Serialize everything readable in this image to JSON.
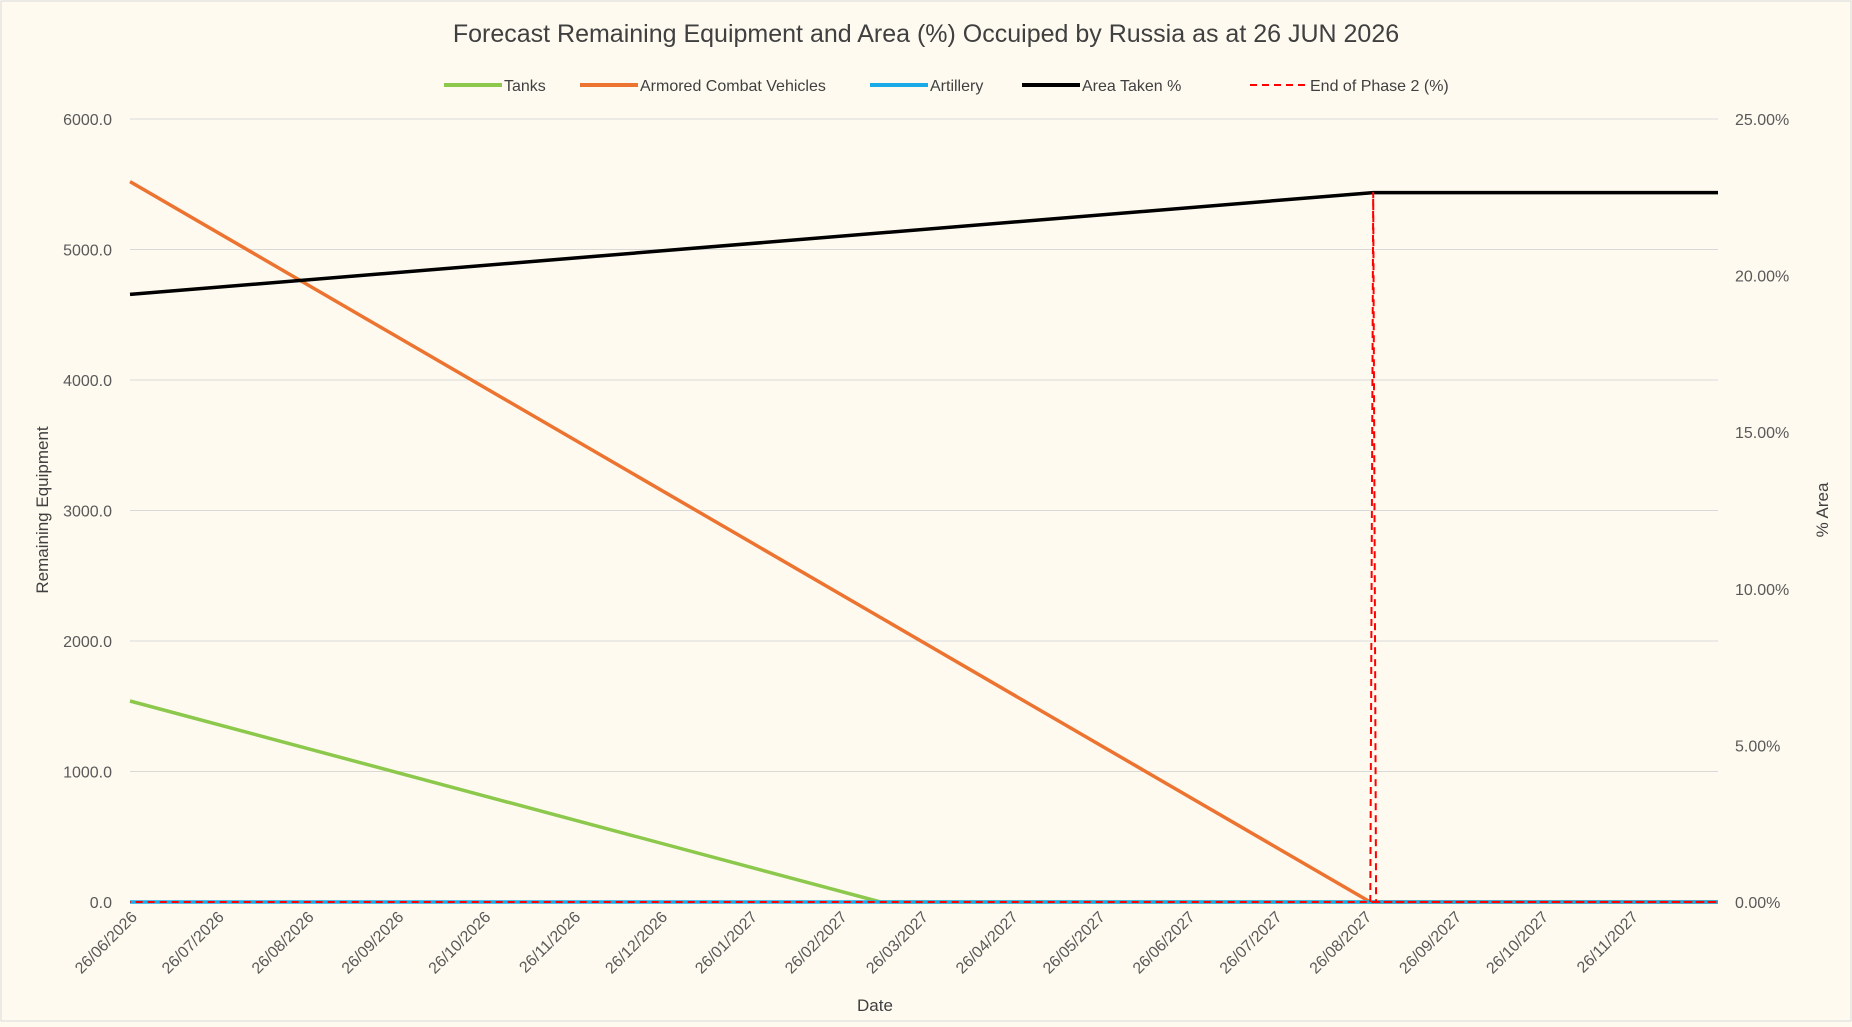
{
  "chart_data": {
    "type": "line",
    "title": "Forecast Remaining Equipment and Area (%) Occuiped by Russia as at 26 JUN 2026",
    "xlabel": "Date",
    "ylabel": "Remaining Equipment",
    "y2label": "% Area",
    "ylim": [
      0,
      6000
    ],
    "y2lim": [
      0,
      25
    ],
    "xlim": [
      "26/06/2026",
      "26/12/2027"
    ],
    "x_ticks": [
      "26/06/2026",
      "26/07/2026",
      "26/08/2026",
      "26/09/2026",
      "26/10/2026",
      "26/11/2026",
      "26/12/2026",
      "26/01/2027",
      "26/02/2027",
      "26/03/2027",
      "26/04/2027",
      "26/05/2027",
      "26/06/2027",
      "26/07/2027",
      "26/08/2027",
      "26/09/2027",
      "26/10/2027",
      "26/11/2027"
    ],
    "y_ticks": [
      "0.0",
      "1000.0",
      "2000.0",
      "3000.0",
      "4000.0",
      "5000.0",
      "6000.0"
    ],
    "y2_ticks": [
      "0.00%",
      "5.00%",
      "10.00%",
      "15.00%",
      "20.00%",
      "25.00%"
    ],
    "grid": true,
    "legend_position": "top",
    "series": [
      {
        "name": "Tanks",
        "axis": "left",
        "color": "#8cc84b",
        "dash": false,
        "points": [
          [
            "26/06/2026",
            1540
          ],
          [
            "12/03/2027",
            0
          ],
          [
            "26/12/2027",
            0
          ]
        ]
      },
      {
        "name": "Armored Combat Vehicles",
        "axis": "left",
        "color": "#ed7330",
        "dash": false,
        "points": [
          [
            "26/06/2026",
            5520
          ],
          [
            "28/08/2027",
            0
          ],
          [
            "26/12/2027",
            0
          ]
        ]
      },
      {
        "name": "Artillery",
        "axis": "left",
        "color": "#1aaae8",
        "dash": false,
        "points": [
          [
            "26/06/2026",
            0
          ],
          [
            "26/12/2027",
            0
          ]
        ]
      },
      {
        "name": "Area Taken %",
        "axis": "right",
        "color": "#000000",
        "dash": false,
        "points": [
          [
            "26/06/2026",
            19.4
          ],
          [
            "29/08/2027",
            22.65
          ],
          [
            "26/12/2027",
            22.65
          ]
        ]
      },
      {
        "name": "End of Phase 2 (%)",
        "axis": "right",
        "color": "#ff0000",
        "dash": true,
        "points": [
          [
            "28/08/2027",
            0
          ],
          [
            "29/08/2027",
            22.65
          ],
          [
            "30/08/2027",
            0
          ],
          [
            "26/12/2027",
            0
          ],
          [
            "26/06/2026",
            0
          ]
        ]
      }
    ]
  }
}
